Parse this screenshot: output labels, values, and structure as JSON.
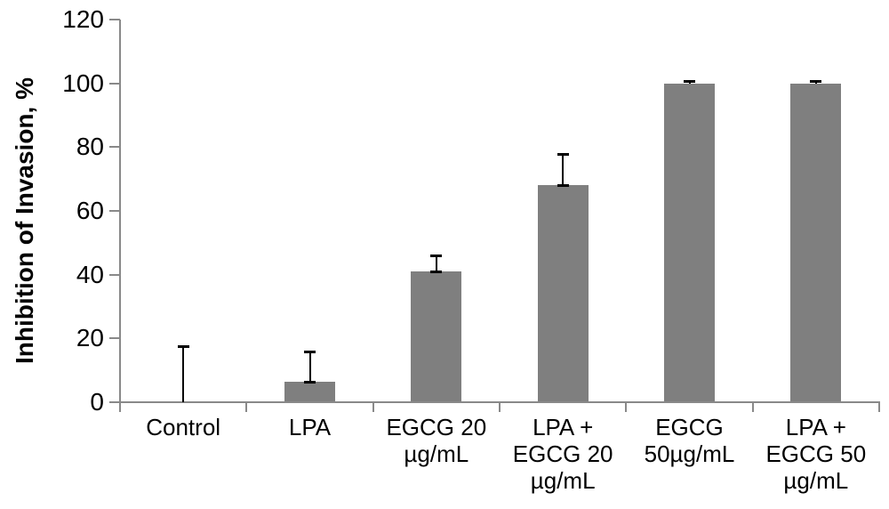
{
  "chart_data": {
    "type": "bar",
    "title": "",
    "xlabel": "",
    "ylabel": "Inhibition of Invasion, %",
    "ylim": [
      0,
      120
    ],
    "yticks": [
      0,
      20,
      40,
      60,
      80,
      100,
      120
    ],
    "grid": false,
    "legend": "none",
    "bar_color": "#7f7f7f",
    "axis_color": "#898989",
    "error_color": "#000000",
    "text_color": "#000000",
    "categories": [
      "Control",
      "LPA",
      "EGCG 20 µg/mL",
      "LPA + EGCG 20 µg/mL",
      "EGCG 50µg/mL",
      "LPA + EGCG 50 µg/mL"
    ],
    "category_label_lines": [
      [
        "Control"
      ],
      [
        "LPA"
      ],
      [
        "EGCG 20",
        "µg/mL"
      ],
      [
        "LPA +",
        "EGCG 20",
        "µg/mL"
      ],
      [
        "EGCG",
        "50µg/mL"
      ],
      [
        "LPA +",
        "EGCG 50",
        "µg/mL"
      ]
    ],
    "values": [
      0,
      6.5,
      41,
      68,
      100,
      100
    ],
    "error_low": [
      0,
      6.5,
      41,
      68,
      100,
      100
    ],
    "error_high": [
      17.5,
      16,
      46,
      78,
      100.7,
      100.7
    ],
    "error_bottom_cap": [
      false,
      true,
      true,
      true,
      false,
      false
    ]
  }
}
